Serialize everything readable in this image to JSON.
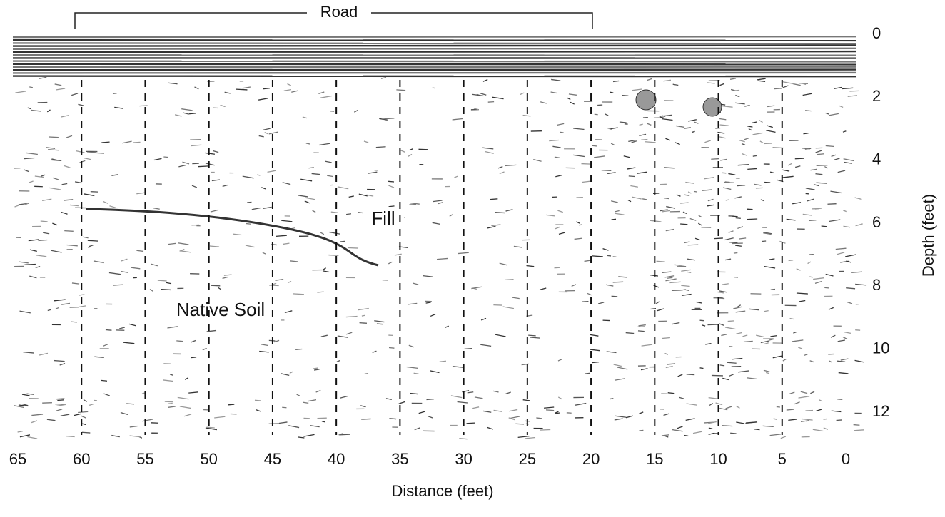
{
  "figure": {
    "bracket_label": "Road",
    "annotations": {
      "fill": "Fill",
      "native_soil": "Native Soil"
    },
    "x_axis": {
      "label": "Distance (feet)",
      "ticks": [
        65,
        60,
        55,
        50,
        45,
        40,
        35,
        30,
        25,
        20,
        15,
        10,
        5,
        0
      ]
    },
    "y_axis": {
      "label": "Depth (feet)",
      "ticks": [
        0,
        2,
        4,
        6,
        8,
        10,
        12
      ]
    }
  }
}
